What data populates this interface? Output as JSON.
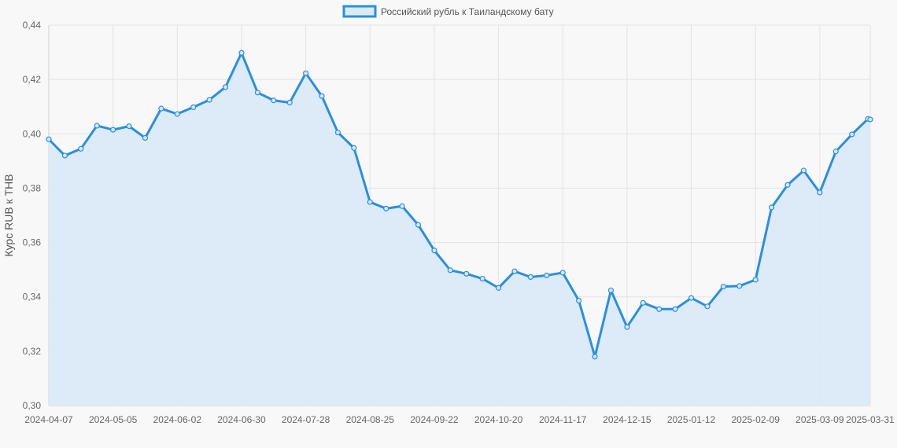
{
  "chart_data": {
    "type": "area",
    "legend_position": "top-center",
    "grid": true,
    "ylabel": "Курс RUB к THB",
    "ylim": [
      0.3,
      0.44
    ],
    "y_ticks": [
      "0,30",
      "0,32",
      "0,34",
      "0,36",
      "0,38",
      "0,40",
      "0,42",
      "0,44"
    ],
    "x_tick_labels": [
      "2024-04-07",
      "2024-05-05",
      "2024-06-02",
      "2024-06-30",
      "2024-07-28",
      "2024-08-25",
      "2024-09-22",
      "2024-10-20",
      "2024-11-17",
      "2024-12-15",
      "2025-01-12",
      "2025-02-09",
      "2025-03-09",
      "2025-03-31"
    ],
    "colors": {
      "line": "#2a8fdf",
      "fill": "#dbeaf8"
    },
    "series": [
      {
        "name": "Российский рубль к Таиландскому бату",
        "points": [
          [
            "2024-04-07",
            0.398
          ],
          [
            "2024-04-14",
            0.392
          ],
          [
            "2024-04-21",
            0.3945
          ],
          [
            "2024-04-28",
            0.403
          ],
          [
            "2024-05-05",
            0.4015
          ],
          [
            "2024-05-12",
            0.4028
          ],
          [
            "2024-05-19",
            0.3985
          ],
          [
            "2024-05-26",
            0.4093
          ],
          [
            "2024-06-02",
            0.4073
          ],
          [
            "2024-06-09",
            0.4098
          ],
          [
            "2024-06-16",
            0.4125
          ],
          [
            "2024-06-23",
            0.4172
          ],
          [
            "2024-06-30",
            0.4298
          ],
          [
            "2024-07-07",
            0.4152
          ],
          [
            "2024-07-14",
            0.4123
          ],
          [
            "2024-07-21",
            0.4115
          ],
          [
            "2024-07-28",
            0.4223
          ],
          [
            "2024-08-04",
            0.4139
          ],
          [
            "2024-08-11",
            0.4005
          ],
          [
            "2024-08-18",
            0.3948
          ],
          [
            "2024-08-25",
            0.3749
          ],
          [
            "2024-09-01",
            0.3725
          ],
          [
            "2024-09-08",
            0.3734
          ],
          [
            "2024-09-15",
            0.3665
          ],
          [
            "2024-09-22",
            0.3571
          ],
          [
            "2024-09-29",
            0.3498
          ],
          [
            "2024-10-06",
            0.3485
          ],
          [
            "2024-10-13",
            0.3467
          ],
          [
            "2024-10-20",
            0.3433
          ],
          [
            "2024-10-27",
            0.3494
          ],
          [
            "2024-11-03",
            0.3473
          ],
          [
            "2024-11-10",
            0.3479
          ],
          [
            "2024-11-17",
            0.3489
          ],
          [
            "2024-11-24",
            0.3386
          ],
          [
            "2024-12-01",
            0.318
          ],
          [
            "2024-12-08",
            0.3424
          ],
          [
            "2024-12-15",
            0.3289
          ],
          [
            "2024-12-22",
            0.3378
          ],
          [
            "2024-12-29",
            0.3355
          ],
          [
            "2025-01-05",
            0.3355
          ],
          [
            "2025-01-12",
            0.3396
          ],
          [
            "2025-01-19",
            0.3365
          ],
          [
            "2025-01-26",
            0.3438
          ],
          [
            "2025-02-02",
            0.344
          ],
          [
            "2025-02-09",
            0.3463
          ],
          [
            "2025-02-16",
            0.3729
          ],
          [
            "2025-02-23",
            0.3812
          ],
          [
            "2025-03-02",
            0.3865
          ],
          [
            "2025-03-09",
            0.3784
          ],
          [
            "2025-03-16",
            0.3935
          ],
          [
            "2025-03-23",
            0.3998
          ],
          [
            "2025-03-30",
            0.4055
          ],
          [
            "2025-03-31",
            0.4053
          ]
        ]
      }
    ]
  }
}
